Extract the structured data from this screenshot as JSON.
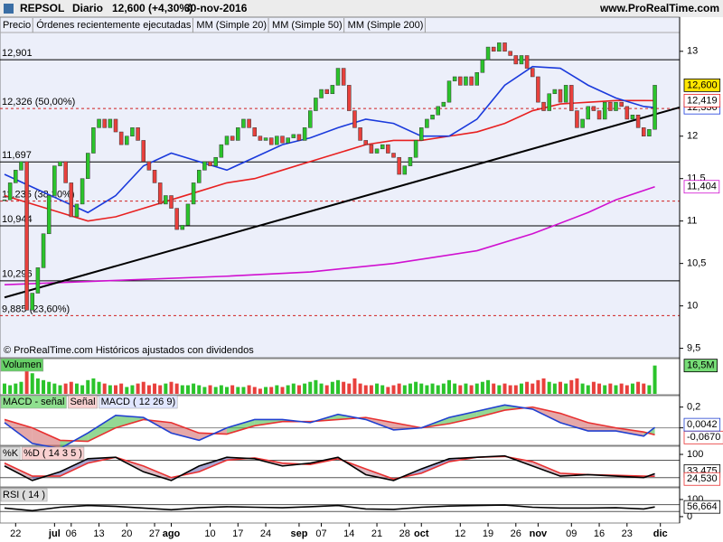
{
  "header": {
    "symbol": "REPSOL",
    "period": "Diario",
    "price": "12,600 (+4,30%)",
    "date": "30-nov-2016",
    "site": "www.ProRealTime.com"
  },
  "chart_data": [
    {
      "type": "candlestick",
      "name": "Precio",
      "legend": [
        "Órdenes recientemente ejecutadas"
      ],
      "close": [
        11.25,
        11.45,
        11.6,
        11.7,
        9.95,
        10.15,
        10.45,
        10.85,
        11.3,
        11.65,
        11.7,
        11.45,
        11.05,
        11.2,
        11.5,
        11.8,
        12.1,
        12.2,
        12.1,
        12.2,
        12.05,
        11.9,
        12.0,
        12.1,
        11.95,
        11.7,
        11.6,
        11.45,
        11.2,
        11.3,
        11.15,
        10.9,
        10.95,
        11.2,
        11.45,
        11.6,
        11.7,
        11.65,
        11.75,
        11.9,
        12.0,
        11.95,
        12.1,
        12.2,
        12.1,
        12.0,
        11.95,
        11.98,
        11.9,
        12.0,
        11.92,
        11.98,
        12.02,
        11.95,
        12.1,
        12.3,
        12.45,
        12.55,
        12.5,
        12.6,
        12.8,
        12.6,
        12.3,
        12.1,
        11.95,
        11.9,
        11.8,
        11.85,
        11.9,
        11.8,
        11.75,
        11.55,
        11.65,
        11.75,
        11.95,
        12.1,
        12.2,
        12.25,
        12.35,
        12.4,
        12.65,
        12.7,
        12.6,
        12.7,
        12.6,
        12.75,
        12.9,
        13.05,
        13.0,
        13.1,
        13.0,
        12.95,
        12.85,
        12.95,
        12.8,
        12.7,
        12.4,
        12.3,
        12.5,
        12.55,
        12.4,
        12.6,
        12.3,
        12.1,
        12.2,
        12.35,
        12.3,
        12.2,
        12.4,
        12.3,
        12.4,
        12.35,
        12.2,
        12.25,
        12.1,
        12.0,
        12.08,
        12.6
      ],
      "close_label": "12,600",
      "up_color": "#2bc42b",
      "down_color": "#e8403c",
      "ylim": [
        9.4,
        13.2
      ],
      "yticks": [
        13,
        12,
        {
          "value": 11.5,
          "label": "11,5"
        },
        11,
        {
          "value": 10.5,
          "label": "10,5"
        },
        10,
        {
          "value": 9.5,
          "label": "9,5"
        }
      ],
      "levels": [
        {
          "value": 12.901,
          "label": "12,901",
          "style": "solid"
        },
        {
          "value": 12.326,
          "label": "12,326 (50,00%)",
          "style": "dashed"
        },
        {
          "value": 11.697,
          "label": "11,697",
          "style": "solid"
        },
        {
          "value": 11.235,
          "label": "11,235 (38,20%)",
          "style": "dashed"
        },
        {
          "value": 10.944,
          "label": "10,944",
          "style": "solid"
        },
        {
          "value": 10.296,
          "label": "10,296",
          "style": "solid"
        },
        {
          "value": 9.885,
          "label": "9,885 (23,60%)",
          "style": "dashed"
        }
      ],
      "series": [
        {
          "name": "MM (Simple 20)",
          "color": "#1a3adc",
          "x": [
            0,
            5,
            10,
            15,
            20,
            25,
            30,
            35,
            40,
            45,
            50,
            55,
            60,
            65,
            70,
            75,
            80,
            85,
            90,
            95,
            100,
            105,
            110,
            115,
            117
          ],
          "values": [
            11.55,
            11.4,
            11.25,
            11.1,
            11.3,
            11.65,
            11.8,
            11.7,
            11.6,
            11.75,
            11.9,
            11.98,
            12.1,
            12.2,
            12.15,
            12.0,
            12.0,
            12.2,
            12.6,
            12.82,
            12.8,
            12.6,
            12.45,
            12.35,
            12.336
          ],
          "last_label": "12,336"
        },
        {
          "name": "MM (Simple 50)",
          "color": "#e82020",
          "x": [
            0,
            5,
            10,
            15,
            20,
            25,
            30,
            35,
            40,
            45,
            50,
            55,
            60,
            65,
            70,
            75,
            80,
            85,
            90,
            95,
            100,
            105,
            110,
            115,
            117
          ],
          "values": [
            11.3,
            11.2,
            11.1,
            11.0,
            11.05,
            11.15,
            11.25,
            11.35,
            11.45,
            11.5,
            11.6,
            11.7,
            11.8,
            11.9,
            11.95,
            11.95,
            12.0,
            12.05,
            12.15,
            12.3,
            12.38,
            12.4,
            12.42,
            12.42,
            12.419
          ],
          "last_label": "12,419"
        },
        {
          "name": "MM (Simple 200)",
          "color": "#d010d0",
          "x": [
            0,
            20,
            40,
            55,
            70,
            85,
            95,
            105,
            110,
            117
          ],
          "values": [
            10.25,
            10.3,
            10.35,
            10.4,
            10.5,
            10.65,
            10.85,
            11.1,
            11.25,
            11.404
          ],
          "last_label": "11,404"
        }
      ],
      "trendline": {
        "color": "#000000",
        "x": [
          0,
          121.5
        ],
        "values": [
          10.1,
          12.34
        ]
      },
      "note": "© ProRealTime.com Históricos ajustados con dividendos",
      "x_labels": [
        {
          "index": 2,
          "label": "22"
        },
        {
          "index": 9,
          "label": "jul"
        },
        {
          "index": 12,
          "label": "06"
        },
        {
          "index": 17,
          "label": "13"
        },
        {
          "index": 22,
          "label": "20"
        },
        {
          "index": 27,
          "label": "27"
        },
        {
          "index": 30,
          "label": "ago"
        },
        {
          "index": 37,
          "label": "10"
        },
        {
          "index": 42,
          "label": "17"
        },
        {
          "index": 47,
          "label": "24"
        },
        {
          "index": 53,
          "label": "sep"
        },
        {
          "index": 57,
          "label": "07"
        },
        {
          "index": 62,
          "label": "14"
        },
        {
          "index": 67,
          "label": "21"
        },
        {
          "index": 72,
          "label": "28"
        },
        {
          "index": 75,
          "label": "oct"
        },
        {
          "index": 82,
          "label": "12"
        },
        {
          "index": 87,
          "label": "19"
        },
        {
          "index": 92,
          "label": "26"
        },
        {
          "index": 96,
          "label": "nov"
        },
        {
          "index": 102,
          "label": "09"
        },
        {
          "index": 107,
          "label": "16"
        },
        {
          "index": 112,
          "label": "23"
        },
        {
          "index": 118,
          "label": "dic"
        }
      ]
    },
    {
      "type": "bar",
      "name": "Volumen",
      "values": [
        6,
        5,
        6,
        7,
        18,
        12,
        9,
        8,
        7,
        6,
        5,
        6,
        7,
        6,
        5,
        8,
        9,
        7,
        6,
        5,
        5,
        6,
        4,
        5,
        6,
        7,
        5,
        6,
        5,
        6,
        7,
        6,
        5,
        5,
        6,
        5,
        4,
        5,
        4,
        5,
        4,
        5,
        4,
        4,
        5,
        4,
        3,
        4,
        4,
        5,
        4,
        5,
        6,
        5,
        6,
        7,
        8,
        6,
        5,
        7,
        8,
        7,
        6,
        9,
        6,
        5,
        5,
        6,
        5,
        4,
        5,
        6,
        5,
        6,
        7,
        6,
        5,
        6,
        5,
        6,
        8,
        6,
        5,
        6,
        5,
        6,
        7,
        8,
        6,
        5,
        6,
        5,
        5,
        6,
        7,
        6,
        8,
        9,
        7,
        6,
        7,
        6,
        8,
        9,
        6,
        5,
        7,
        6,
        5,
        6,
        5,
        6,
        5,
        6,
        7,
        6,
        5,
        16.5
      ],
      "last_label": "16,5M",
      "ylim": [
        0,
        20
      ]
    },
    {
      "type": "macd",
      "legend": [
        "MACD - señal"
      ],
      "series": [
        {
          "name": "Señal",
          "color": "#e83030",
          "x": [
            0,
            5,
            10,
            15,
            20,
            25,
            30,
            35,
            40,
            45,
            50,
            55,
            60,
            65,
            70,
            75,
            80,
            85,
            90,
            95,
            100,
            105,
            110,
            115,
            117
          ],
          "values": [
            0.08,
            0.0,
            -0.12,
            -0.13,
            0.0,
            0.08,
            0.05,
            -0.05,
            -0.06,
            0.02,
            0.06,
            0.06,
            0.08,
            0.1,
            0.05,
            0.0,
            0.04,
            0.1,
            0.17,
            0.2,
            0.14,
            0.05,
            0.0,
            -0.04,
            -0.067
          ],
          "last_label": "-0,0670"
        },
        {
          "name": "MACD ( 12 26 9)",
          "color": "#2040d0",
          "x": [
            0,
            5,
            10,
            15,
            20,
            25,
            30,
            35,
            40,
            45,
            50,
            55,
            60,
            65,
            70,
            75,
            80,
            85,
            90,
            95,
            100,
            105,
            110,
            115,
            117
          ],
          "values": [
            0.05,
            -0.15,
            -0.2,
            -0.05,
            0.12,
            0.1,
            -0.05,
            -0.12,
            0.0,
            0.08,
            0.08,
            0.05,
            0.13,
            0.08,
            -0.02,
            0.0,
            0.1,
            0.16,
            0.22,
            0.18,
            0.05,
            -0.03,
            -0.03,
            -0.08,
            0.0042
          ],
          "last_label": "0,0042"
        }
      ],
      "ylim": [
        -0.16,
        0.31
      ],
      "yticks": [
        {
          "value": 0.2,
          "label": "0,2"
        },
        0
      ]
    },
    {
      "type": "stochastic",
      "series": [
        {
          "name": "%K",
          "color": "#000000",
          "x": [
            0,
            5,
            10,
            15,
            20,
            25,
            30,
            35,
            40,
            45,
            50,
            55,
            60,
            65,
            70,
            75,
            80,
            85,
            90,
            95,
            100,
            105,
            110,
            115,
            117
          ],
          "values": [
            60,
            10,
            40,
            85,
            90,
            40,
            10,
            60,
            90,
            85,
            60,
            70,
            90,
            30,
            10,
            50,
            85,
            90,
            95,
            60,
            25,
            30,
            25,
            20,
            33.475
          ],
          "last_label": "33,475"
        },
        {
          "name": "%D ( 14 3 5 )",
          "color": "#e83030",
          "x": [
            0,
            5,
            10,
            15,
            20,
            25,
            30,
            35,
            40,
            45,
            50,
            55,
            60,
            65,
            70,
            75,
            80,
            85,
            90,
            95,
            100,
            105,
            110,
            115,
            117
          ],
          "values": [
            70,
            25,
            25,
            70,
            90,
            60,
            20,
            40,
            80,
            88,
            70,
            65,
            85,
            50,
            15,
            35,
            75,
            90,
            93,
            75,
            35,
            30,
            28,
            25,
            24.53
          ],
          "last_label": "24,530"
        }
      ],
      "ylim": [
        -9,
        125
      ],
      "yticks": [
        100
      ],
      "levels": [
        80,
        20
      ]
    },
    {
      "type": "rsi",
      "series": [
        {
          "name": "RSI ( 14 )",
          "color": "#000000",
          "x": [
            0,
            5,
            10,
            15,
            20,
            25,
            30,
            35,
            40,
            45,
            50,
            55,
            60,
            65,
            70,
            75,
            80,
            85,
            90,
            95,
            100,
            105,
            110,
            115,
            117
          ],
          "values": [
            50,
            35,
            55,
            65,
            60,
            50,
            40,
            52,
            58,
            55,
            52,
            58,
            65,
            45,
            42,
            55,
            62,
            65,
            68,
            55,
            50,
            50,
            52,
            45,
            56.664
          ],
          "last_label": "56,664"
        }
      ],
      "ylim": [
        -32,
        163
      ],
      "yticks": [
        100,
        0
      ],
      "levels": [
        70,
        30
      ]
    }
  ]
}
